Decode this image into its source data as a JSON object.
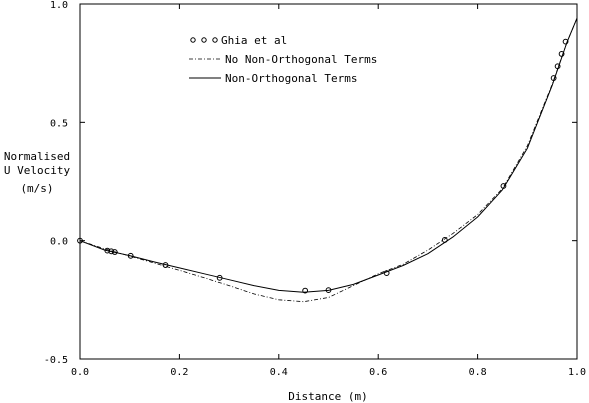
{
  "chart_data": {
    "type": "line",
    "xlabel": "Distance (m)",
    "ylabel_lines": [
      "Normalised",
      "U Velocity",
      "(m/s)"
    ],
    "xlim": [
      0.0,
      1.0
    ],
    "ylim": [
      -0.5,
      1.0
    ],
    "x_ticks": [
      0.0,
      0.2,
      0.4,
      0.6,
      0.8,
      1.0
    ],
    "x_tick_labels": [
      "0.0",
      "0.2",
      "0.4",
      "0.6",
      "0.8",
      "1.0"
    ],
    "y_ticks": [
      -0.5,
      0.0,
      0.5,
      1.0
    ],
    "y_tick_labels": [
      "-0.5",
      "0.0",
      "0.5",
      "1.0"
    ],
    "grid": false,
    "legend_position": "top-left",
    "series": [
      {
        "name": "Ghia et al",
        "style": "markers",
        "x": [
          0.0,
          0.055,
          0.063,
          0.07,
          0.102,
          0.172,
          0.281,
          0.453,
          0.5,
          0.617,
          0.734,
          0.852,
          0.953,
          0.961,
          0.969,
          0.977
        ],
        "y": [
          0.0,
          -0.042,
          -0.045,
          -0.048,
          -0.064,
          -0.103,
          -0.157,
          -0.211,
          -0.209,
          -0.137,
          0.003,
          0.231,
          0.687,
          0.737,
          0.789,
          0.841
        ]
      },
      {
        "name": "No Non-Orthogonal Terms",
        "style": "dash-dot",
        "x": [
          0.0,
          0.05,
          0.1,
          0.15,
          0.2,
          0.25,
          0.3,
          0.35,
          0.4,
          0.45,
          0.5,
          0.55,
          0.6,
          0.65,
          0.7,
          0.75,
          0.8,
          0.85,
          0.9,
          0.95,
          0.98,
          1.0
        ],
        "y": [
          0.0,
          -0.035,
          -0.065,
          -0.095,
          -0.125,
          -0.157,
          -0.19,
          -0.225,
          -0.25,
          -0.258,
          -0.24,
          -0.19,
          -0.14,
          -0.1,
          -0.04,
          0.03,
          0.11,
          0.22,
          0.4,
          0.66,
          0.84,
          0.94
        ]
      },
      {
        "name": "Non-Orthogonal Terms",
        "style": "solid",
        "x": [
          0.0,
          0.05,
          0.1,
          0.15,
          0.2,
          0.25,
          0.3,
          0.35,
          0.4,
          0.45,
          0.5,
          0.55,
          0.6,
          0.65,
          0.7,
          0.75,
          0.8,
          0.85,
          0.9,
          0.95,
          0.98,
          1.0
        ],
        "y": [
          0.0,
          -0.04,
          -0.063,
          -0.09,
          -0.115,
          -0.14,
          -0.165,
          -0.19,
          -0.21,
          -0.218,
          -0.21,
          -0.185,
          -0.145,
          -0.105,
          -0.055,
          0.015,
          0.1,
          0.215,
          0.39,
          0.655,
          0.84,
          0.94
        ]
      }
    ]
  }
}
